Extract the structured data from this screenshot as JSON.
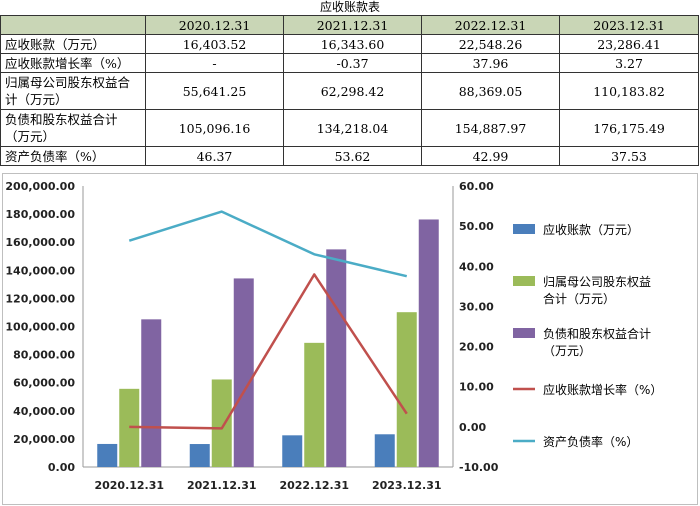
{
  "table": {
    "title": "应收账款表",
    "columns": [
      "",
      "2020.12.31",
      "2021.12.31",
      "2022.12.31",
      "2023.12.31"
    ],
    "rows": [
      {
        "label": "应收账款（万元）",
        "values": [
          "16,403.52",
          "16,343.60",
          "22,548.26",
          "23,286.41"
        ]
      },
      {
        "label": "应收账款增长率（%）",
        "values": [
          "-",
          "-0.37",
          "37.96",
          "3.27"
        ]
      },
      {
        "label": "归属母公司股东权益合计（万元）",
        "values": [
          "55,641.25",
          "62,298.42",
          "88,369.05",
          "110,183.82"
        ]
      },
      {
        "label": "负债和股东权益合计（万元）",
        "values": [
          "105,096.16",
          "134,218.04",
          "154,887.97",
          "176,175.49"
        ]
      },
      {
        "label": "资产负债率（%）",
        "values": [
          "46.37",
          "53.62",
          "42.99",
          "37.53"
        ]
      }
    ]
  },
  "chart_data": {
    "type": "bar",
    "categories": [
      "2020.12.31",
      "2021.12.31",
      "2022.12.31",
      "2023.12.31"
    ],
    "ylim": [
      0,
      200000
    ],
    "y_ticks": [
      "200,000.00",
      "180,000.00",
      "160,000.00",
      "140,000.00",
      "120,000.00",
      "100,000.00",
      "80,000.00",
      "60,000.00",
      "40,000.00",
      "20,000.00",
      "0.00"
    ],
    "y2lim": [
      -10,
      60
    ],
    "y2_ticks": [
      "60.00",
      "50.00",
      "40.00",
      "30.00",
      "20.00",
      "10.00",
      "0.00",
      "-10.00"
    ],
    "series": [
      {
        "name": "应收账款（万元）",
        "kind": "bar",
        "axis": "left",
        "color": "#4a7ebb",
        "values": [
          16403.52,
          16343.6,
          22548.26,
          23286.41
        ]
      },
      {
        "name": "归属母公司股东权益合计（万元）",
        "kind": "bar",
        "axis": "left",
        "color": "#9bbb59",
        "values": [
          55641.25,
          62298.42,
          88369.05,
          110183.82
        ]
      },
      {
        "name": "负债和股东权益合计（万元）",
        "kind": "bar",
        "axis": "left",
        "color": "#8064a2",
        "values": [
          105096.16,
          134218.04,
          154887.97,
          176175.49
        ]
      },
      {
        "name": "应收账款增长率（%）",
        "kind": "line",
        "axis": "right",
        "color": "#c0504d",
        "values": [
          0,
          -0.37,
          37.96,
          3.27
        ]
      },
      {
        "name": "资产负债率（%）",
        "kind": "line",
        "axis": "right",
        "color": "#4bacc6",
        "values": [
          46.37,
          53.62,
          42.99,
          37.53
        ]
      }
    ],
    "legend_position": "right",
    "legend": [
      {
        "lines": [
          "应收账款（万元）"
        ],
        "marker": "box",
        "color": "#4a7ebb"
      },
      {
        "lines": [
          "归属母公司股东权益",
          "合计（万元）"
        ],
        "marker": "box",
        "color": "#9bbb59"
      },
      {
        "lines": [
          "负债和股东权益合计",
          "（万元）"
        ],
        "marker": "box",
        "color": "#8064a2"
      },
      {
        "lines": [
          "应收账款增长率（%）"
        ],
        "marker": "line",
        "color": "#c0504d"
      },
      {
        "lines": [
          "资产负债率（%）"
        ],
        "marker": "line",
        "color": "#4bacc6"
      }
    ]
  }
}
